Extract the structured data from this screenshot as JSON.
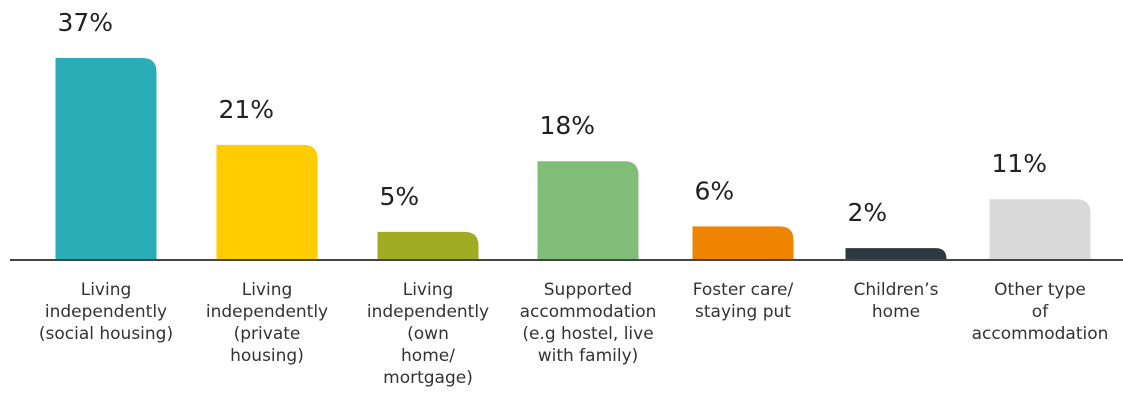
{
  "chart_data": {
    "type": "bar",
    "categories": [
      [
        "Living",
        "independently",
        "(social housing)"
      ],
      [
        "Living",
        "independently",
        "(private",
        "housing)"
      ],
      [
        "Living",
        "independently",
        "(own",
        "home/",
        "mortgage)"
      ],
      [
        "Supported",
        "accommodation",
        "(e.g hostel, live",
        "with family)"
      ],
      [
        "Foster care/",
        "staying put"
      ],
      [
        "Children’s",
        "home"
      ],
      [
        "Other type",
        "of",
        "accommodation"
      ]
    ],
    "values": [
      37,
      21,
      5,
      18,
      6,
      2,
      11
    ],
    "value_labels": [
      "37%",
      "21%",
      "5%",
      "18%",
      "6%",
      "2%",
      "11%"
    ],
    "colors": [
      "#2aadb6",
      "#ffcc00",
      "#a0ac22",
      "#80bd78",
      "#ef8400",
      "#2b3a40",
      "#d9d9d9"
    ]
  }
}
